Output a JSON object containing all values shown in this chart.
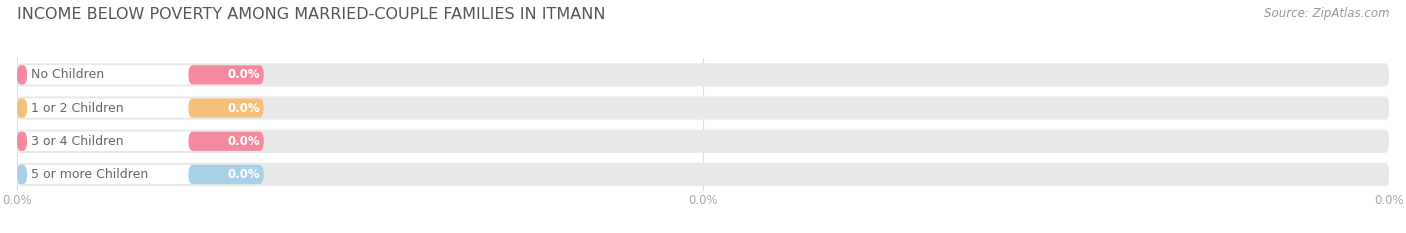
{
  "title": "INCOME BELOW POVERTY AMONG MARRIED-COUPLE FAMILIES IN ITMANN",
  "source": "Source: ZipAtlas.com",
  "categories": [
    "No Children",
    "1 or 2 Children",
    "3 or 4 Children",
    "5 or more Children"
  ],
  "values": [
    0.0,
    0.0,
    0.0,
    0.0
  ],
  "bar_colors": [
    "#f48aa0",
    "#f5c07a",
    "#f48aa0",
    "#a8d0e6"
  ],
  "bar_bg_color": "#e8e8e8",
  "background_color": "#ffffff",
  "title_fontsize": 11.5,
  "label_fontsize": 9,
  "value_fontsize": 8.5,
  "source_fontsize": 8.5,
  "tick_fontsize": 8.5,
  "tick_color": "#aaaaaa",
  "label_color": "#666666",
  "title_color": "#555555",
  "source_color": "#999999",
  "grid_color": "#dddddd"
}
